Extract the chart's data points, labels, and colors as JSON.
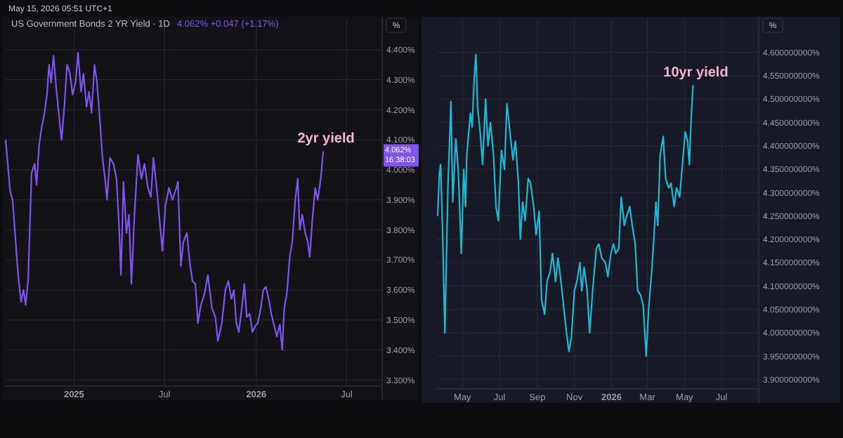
{
  "chart_data": [
    {
      "type": "line",
      "title": "US Government Bonds 2 YR Yield · 1D",
      "subtitle": "4.062%  +0.047 (+1.17%)",
      "ylabel": "%",
      "grid": true,
      "marker": "none",
      "line_style": "solid",
      "xlim": [
        "2024-08-17",
        "2026-09-10"
      ],
      "xticks": [
        {
          "value": "2025-01-01",
          "label": "2025"
        },
        {
          "value": "2025-07-01",
          "label": "Jul"
        },
        {
          "value": "2026-01-01",
          "label": "2026"
        },
        {
          "value": "2026-07-01",
          "label": "Jul"
        }
      ],
      "ylim": [
        3.28,
        4.5
      ],
      "yticks": [
        {
          "value": 3.3,
          "label": "3.300%"
        },
        {
          "value": 3.4,
          "label": "3.400%"
        },
        {
          "value": 3.5,
          "label": "3.500%"
        },
        {
          "value": 3.6,
          "label": "3.600%"
        },
        {
          "value": 3.7,
          "label": "3.700%"
        },
        {
          "value": 3.8,
          "label": "3.800%"
        },
        {
          "value": 3.9,
          "label": "3.900%"
        },
        {
          "value": 4.0,
          "label": "4.000%"
        },
        {
          "value": 4.1,
          "label": "4.100%"
        },
        {
          "value": 4.2,
          "label": "4.200%"
        },
        {
          "value": 4.3,
          "label": "4.300%"
        },
        {
          "value": 4.4,
          "label": "4.400%"
        }
      ],
      "x": [
        "2024-08-17",
        "2024-08-22",
        "2024-08-26",
        "2024-08-31",
        "2024-09-07",
        "2024-09-11",
        "2024-09-17",
        "2024-09-22",
        "2024-09-26",
        "2024-10-01",
        "2024-10-08",
        "2024-10-14",
        "2024-10-18",
        "2024-10-23",
        "2024-10-28",
        "2024-11-03",
        "2024-11-08",
        "2024-11-12",
        "2024-11-16",
        "2024-11-21",
        "2024-11-27",
        "2024-12-02",
        "2024-12-07",
        "2024-12-13",
        "2024-12-18",
        "2024-12-24",
        "2024-12-29",
        "2025-01-04",
        "2025-01-09",
        "2025-01-15",
        "2025-01-20",
        "2025-01-26",
        "2025-01-31",
        "2025-02-05",
        "2025-02-11",
        "2025-02-16",
        "2025-02-22",
        "2025-02-27",
        "2025-03-05",
        "2025-03-08",
        "2025-03-14",
        "2025-03-21",
        "2025-03-27",
        "2025-04-01",
        "2025-04-05",
        "2025-04-10",
        "2025-04-16",
        "2025-04-21",
        "2025-04-26",
        "2025-05-02",
        "2025-05-09",
        "2025-05-16",
        "2025-05-22",
        "2025-05-29",
        "2025-06-04",
        "2025-06-09",
        "2025-06-16",
        "2025-06-22",
        "2025-06-27",
        "2025-07-03",
        "2025-07-10",
        "2025-07-17",
        "2025-07-25",
        "2025-07-28",
        "2025-08-03",
        "2025-08-08",
        "2025-08-15",
        "2025-08-21",
        "2025-08-26",
        "2025-09-01",
        "2025-09-06",
        "2025-09-12",
        "2025-09-19",
        "2025-09-26",
        "2025-10-04",
        "2025-10-11",
        "2025-10-16",
        "2025-10-24",
        "2025-10-31",
        "2025-11-06",
        "2025-11-12",
        "2025-11-17",
        "2025-11-22",
        "2025-11-27",
        "2025-12-03",
        "2025-12-08",
        "2025-12-13",
        "2025-12-19",
        "2025-12-24",
        "2025-12-30",
        "2026-01-04",
        "2026-01-10",
        "2026-01-15",
        "2026-01-20",
        "2026-01-26",
        "2026-01-31",
        "2026-02-06",
        "2026-02-11",
        "2026-02-17",
        "2026-02-22",
        "2026-02-26",
        "2026-03-03",
        "2026-03-09",
        "2026-03-14",
        "2026-03-20",
        "2026-03-25",
        "2026-03-29",
        "2026-04-03",
        "2026-04-09",
        "2026-04-14",
        "2026-04-18",
        "2026-04-23",
        "2026-04-29",
        "2026-05-04",
        "2026-05-10",
        "2026-05-15"
      ],
      "series": [
        {
          "color": "#7d55ec",
          "values": [
            4.1,
            4.006,
            3.93,
            3.9,
            3.74,
            3.65,
            3.56,
            3.6,
            3.55,
            3.63,
            3.99,
            4.02,
            3.95,
            4.08,
            4.14,
            4.19,
            4.255,
            4.35,
            4.29,
            4.38,
            4.26,
            4.18,
            4.1,
            4.22,
            4.35,
            4.32,
            4.25,
            4.29,
            4.39,
            4.26,
            4.32,
            4.21,
            4.26,
            4.19,
            4.35,
            4.29,
            4.16,
            4.04,
            3.96,
            3.9,
            4.04,
            4.02,
            3.97,
            3.82,
            3.65,
            3.96,
            3.79,
            3.85,
            3.62,
            3.85,
            4.05,
            3.97,
            4.02,
            3.94,
            3.91,
            4.04,
            3.93,
            3.82,
            3.73,
            3.88,
            3.94,
            3.9,
            3.94,
            3.96,
            3.68,
            3.76,
            3.79,
            3.69,
            3.63,
            3.62,
            3.49,
            3.55,
            3.585,
            3.65,
            3.54,
            3.51,
            3.43,
            3.49,
            3.6,
            3.63,
            3.57,
            3.6,
            3.49,
            3.46,
            3.54,
            3.62,
            3.51,
            3.52,
            3.46,
            3.48,
            3.49,
            3.54,
            3.6,
            3.61,
            3.57,
            3.52,
            3.48,
            3.445,
            3.485,
            3.4,
            3.54,
            3.585,
            3.71,
            3.76,
            3.9,
            3.97,
            3.8,
            3.85,
            3.79,
            3.76,
            3.71,
            3.83,
            3.94,
            3.9,
            3.97,
            4.062
          ]
        }
      ],
      "annotations": [
        "May 15, 2026 05:51 UTC+1",
        {
          "text": "2yr yield",
          "x": "2026-05-15",
          "y": 4.062
        },
        "4.062%\n16:38:03"
      ]
    },
    {
      "type": "line",
      "ylabel": "%",
      "grid": true,
      "marker": "none",
      "line_style": "solid",
      "xlim": [
        "2025-03-20",
        "2026-08-31"
      ],
      "xticks": [
        {
          "value": "2025-05-01",
          "label": "May"
        },
        {
          "value": "2025-07-01",
          "label": "Jul"
        },
        {
          "value": "2025-09-01",
          "label": "Sep"
        },
        {
          "value": "2025-11-01",
          "label": "Nov"
        },
        {
          "value": "2026-01-01",
          "label": "2026"
        },
        {
          "value": "2026-03-01",
          "label": "Mar"
        },
        {
          "value": "2026-05-01",
          "label": "May"
        },
        {
          "value": "2026-07-01",
          "label": "Jul"
        }
      ],
      "ylim": [
        3.88,
        4.67
      ],
      "yticks": [
        {
          "value": 3.9,
          "label": "3.900000000%"
        },
        {
          "value": 3.95,
          "label": "3.950000000%"
        },
        {
          "value": 4.0,
          "label": "4.000000000%"
        },
        {
          "value": 4.05,
          "label": "4.050000000%"
        },
        {
          "value": 4.1,
          "label": "4.100000000%"
        },
        {
          "value": 4.15,
          "label": "4.150000000%"
        },
        {
          "value": 4.2,
          "label": "4.200000000%"
        },
        {
          "value": 4.25,
          "label": "4.250000000%"
        },
        {
          "value": 4.3,
          "label": "4.300000000%"
        },
        {
          "value": 4.35,
          "label": "4.350000000%"
        },
        {
          "value": 4.4,
          "label": "4.400000000%"
        },
        {
          "value": 4.45,
          "label": "4.450000000%"
        },
        {
          "value": 4.5,
          "label": "4.500000000%"
        },
        {
          "value": 4.55,
          "label": "4.550000000%"
        },
        {
          "value": 4.6,
          "label": "4.600000000%"
        }
      ],
      "x": [
        "2025-03-21",
        "2025-03-24",
        "2025-03-26",
        "2025-03-29",
        "2025-04-02",
        "2025-04-07",
        "2025-04-12",
        "2025-04-15",
        "2025-04-20",
        "2025-04-24",
        "2025-04-29",
        "2025-05-03",
        "2025-05-06",
        "2025-05-08",
        "2025-05-14",
        "2025-05-17",
        "2025-05-20",
        "2025-05-23",
        "2025-05-26",
        "2025-05-30",
        "2025-06-03",
        "2025-06-08",
        "2025-06-12",
        "2025-06-16",
        "2025-06-21",
        "2025-06-25",
        "2025-06-29",
        "2025-07-04",
        "2025-07-09",
        "2025-07-13",
        "2025-07-18",
        "2025-07-23",
        "2025-07-27",
        "2025-08-01",
        "2025-08-04",
        "2025-08-08",
        "2025-08-12",
        "2025-08-17",
        "2025-08-21",
        "2025-08-26",
        "2025-08-30",
        "2025-09-04",
        "2025-09-08",
        "2025-09-13",
        "2025-09-17",
        "2025-09-22",
        "2025-09-26",
        "2025-10-01",
        "2025-10-05",
        "2025-10-09",
        "2025-10-14",
        "2025-10-19",
        "2025-10-23",
        "2025-10-27",
        "2025-11-01",
        "2025-11-05",
        "2025-11-10",
        "2025-11-13",
        "2025-11-17",
        "2025-11-22",
        "2025-11-26",
        "2025-12-01",
        "2025-12-07",
        "2025-12-11",
        "2025-12-16",
        "2025-12-22",
        "2025-12-26",
        "2025-12-31",
        "2026-01-04",
        "2026-01-08",
        "2026-01-13",
        "2026-01-17",
        "2026-01-22",
        "2026-01-26",
        "2026-01-31",
        "2026-02-04",
        "2026-02-09",
        "2026-02-13",
        "2026-02-18",
        "2026-02-22",
        "2026-02-27",
        "2026-03-03",
        "2026-03-08",
        "2026-03-12",
        "2026-03-15",
        "2026-03-18",
        "2026-03-22",
        "2026-03-27",
        "2026-03-31",
        "2026-04-05",
        "2026-04-09",
        "2026-04-14",
        "2026-04-18",
        "2026-04-23",
        "2026-04-27",
        "2026-05-02",
        "2026-05-06",
        "2026-05-09",
        "2026-05-12",
        "2026-05-15"
      ],
      "series": [
        {
          "color": "#1db8d2",
          "values": [
            4.25,
            4.34,
            4.36,
            4.23,
            4.0,
            4.31,
            4.495,
            4.28,
            4.415,
            4.35,
            4.17,
            4.35,
            4.27,
            4.38,
            4.47,
            4.44,
            4.54,
            4.595,
            4.48,
            4.43,
            4.36,
            4.5,
            4.4,
            4.45,
            4.38,
            4.27,
            4.24,
            4.39,
            4.35,
            4.49,
            4.43,
            4.37,
            4.41,
            4.32,
            4.2,
            4.28,
            4.24,
            4.33,
            4.32,
            4.27,
            4.21,
            4.26,
            4.07,
            4.04,
            4.11,
            4.13,
            4.17,
            4.11,
            4.16,
            4.12,
            4.06,
            4.0,
            3.96,
            3.99,
            4.09,
            4.11,
            4.15,
            4.09,
            4.14,
            4.09,
            4.0,
            4.09,
            4.18,
            4.19,
            4.16,
            4.15,
            4.12,
            4.17,
            4.19,
            4.17,
            4.18,
            4.29,
            4.23,
            4.25,
            4.27,
            4.23,
            4.19,
            4.09,
            4.08,
            4.06,
            3.95,
            4.05,
            4.13,
            4.21,
            4.28,
            4.23,
            4.38,
            4.42,
            4.33,
            4.31,
            4.32,
            4.27,
            4.31,
            4.29,
            4.35,
            4.43,
            4.41,
            4.36,
            4.46,
            4.53
          ]
        }
      ],
      "annotations": [
        {
          "text": "10yr yield",
          "x": "2026-05-15",
          "y": 4.53
        }
      ]
    }
  ]
}
